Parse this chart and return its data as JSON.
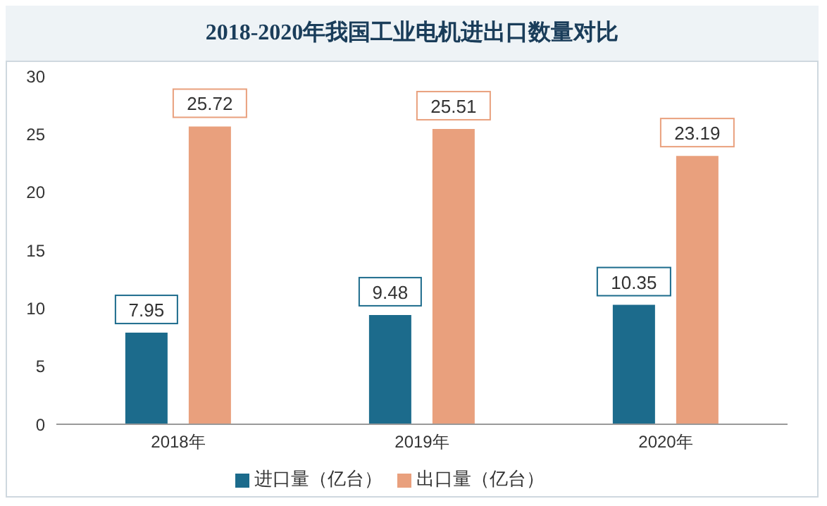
{
  "chart_data": {
    "type": "bar",
    "title": "2018-2020年我国工业电机进出口数量对比",
    "categories": [
      "2018年",
      "2019年",
      "2020年"
    ],
    "series": [
      {
        "name": "进口量（亿台）",
        "color": "#1c6b8c",
        "values": [
          7.95,
          9.48,
          10.35
        ]
      },
      {
        "name": "出口量（亿台）",
        "color": "#e9a07d",
        "values": [
          25.72,
          25.51,
          23.19
        ]
      }
    ],
    "ylim": [
      0,
      30
    ],
    "yticks": [
      0,
      5,
      10,
      15,
      20,
      25,
      30
    ],
    "grid": false,
    "legend": "bottom",
    "data_labels": true
  }
}
